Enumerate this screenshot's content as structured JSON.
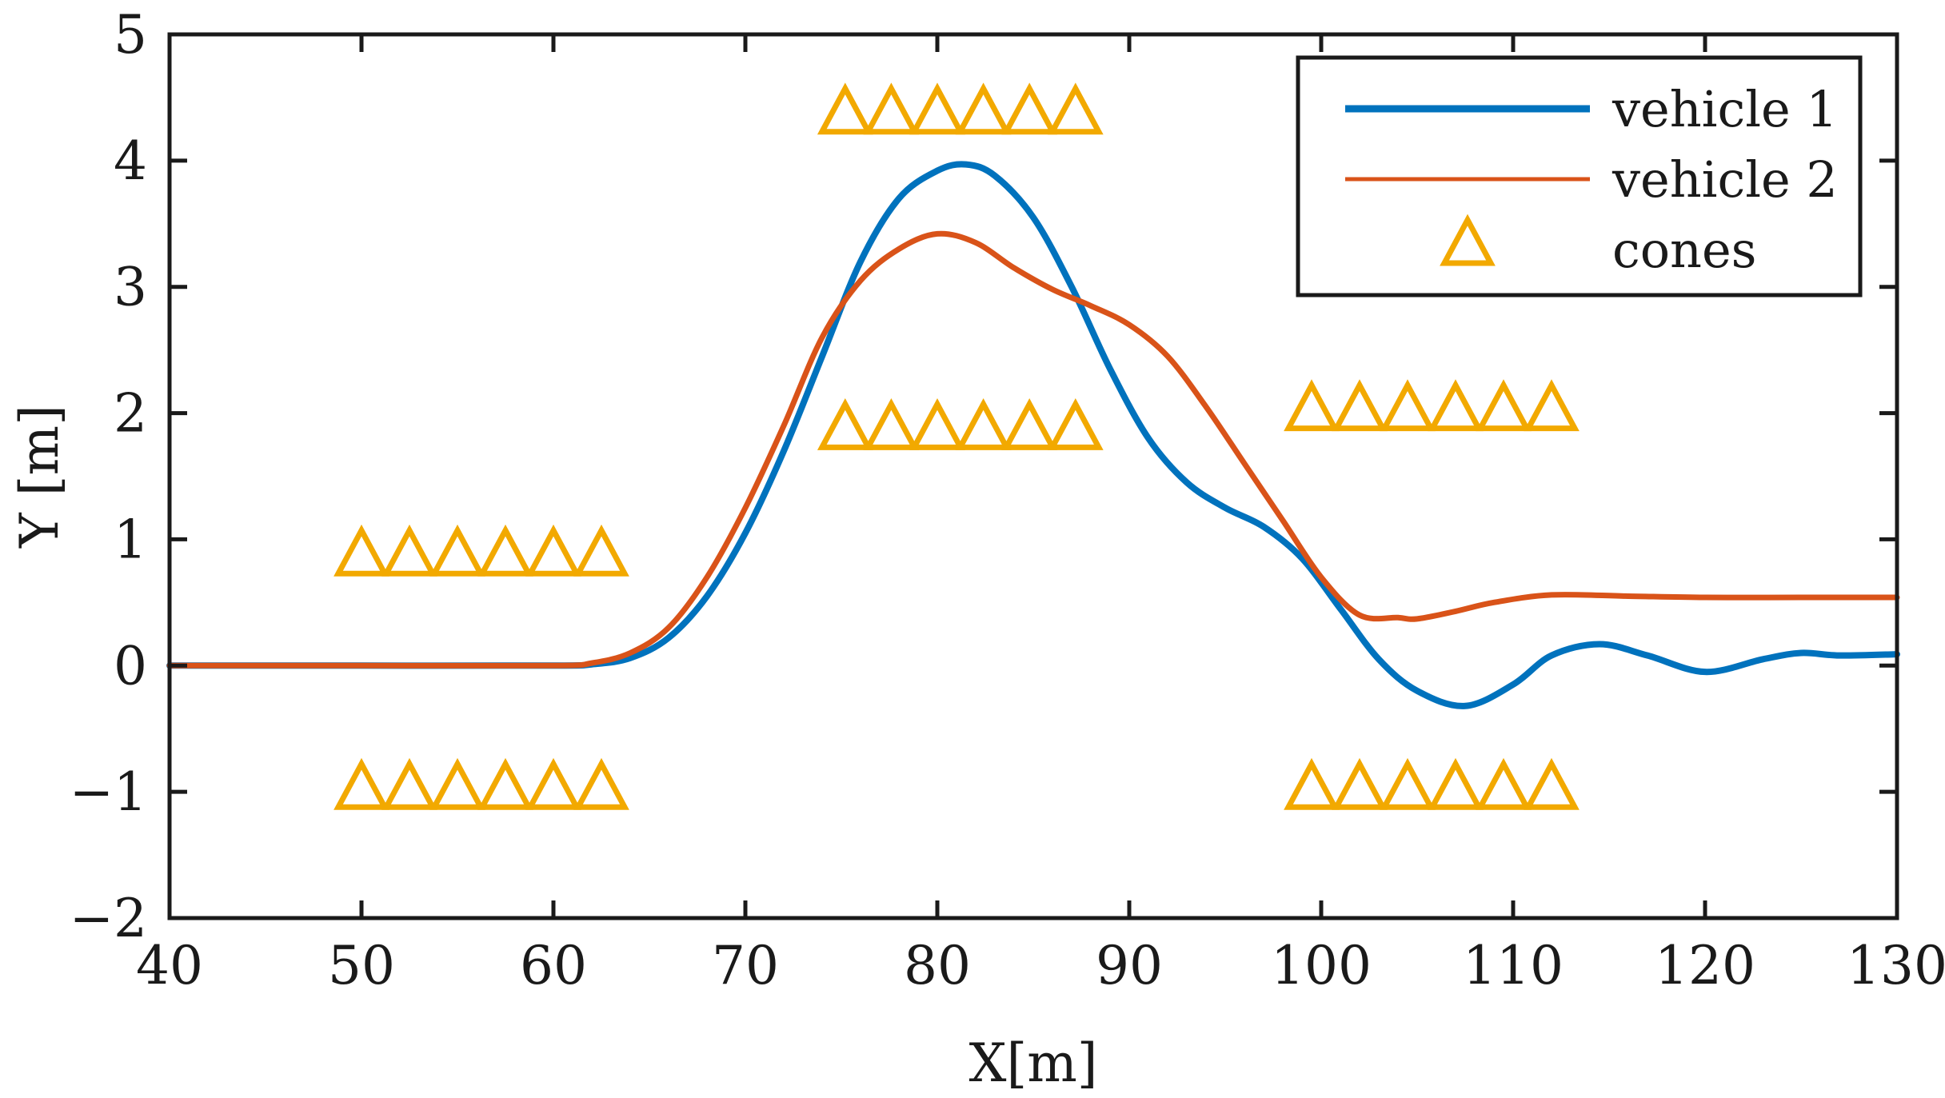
{
  "chart_data": {
    "type": "line",
    "title": "",
    "xlabel": "X[m]",
    "ylabel": "Y [m]",
    "xlim": [
      40,
      130
    ],
    "ylim": [
      -2,
      5
    ],
    "xticks": [
      40,
      50,
      60,
      70,
      80,
      90,
      100,
      110,
      120,
      130
    ],
    "yticks": [
      -2,
      -1,
      0,
      1,
      2,
      3,
      4,
      5
    ],
    "xtick_labels": [
      "40",
      "50",
      "60",
      "70",
      "80",
      "90",
      "100",
      "110",
      "120",
      "130"
    ],
    "ytick_labels": [
      "−2",
      "−1",
      "0",
      "1",
      "2",
      "3",
      "4",
      "5"
    ],
    "grid": false,
    "legend_position": "top-right",
    "series": [
      {
        "name": "vehicle 1",
        "color": "#0072BD",
        "style": "thick",
        "x": [
          40,
          50,
          60,
          62,
          64,
          66,
          68,
          70,
          72,
          74,
          76,
          78,
          80,
          81.5,
          83,
          85,
          87,
          89,
          91,
          93,
          95,
          97,
          99,
          101,
          103,
          105,
          107.5,
          110,
          112,
          114.5,
          117,
          120,
          123,
          125,
          127,
          130
        ],
        "y": [
          0,
          0,
          0,
          0.01,
          0.06,
          0.22,
          0.55,
          1.05,
          1.7,
          2.45,
          3.2,
          3.7,
          3.92,
          3.97,
          3.88,
          3.55,
          3.0,
          2.35,
          1.8,
          1.45,
          1.25,
          1.1,
          0.85,
          0.45,
          0.05,
          -0.2,
          -0.32,
          -0.15,
          0.08,
          0.17,
          0.08,
          -0.05,
          0.05,
          0.1,
          0.08,
          0.09
        ]
      },
      {
        "name": "vehicle 2",
        "color": "#D95319",
        "style": "medium",
        "x": [
          40,
          50,
          60,
          62,
          64,
          66,
          68,
          70,
          72,
          74,
          76,
          78,
          80,
          82,
          84,
          86,
          88,
          90,
          92,
          94,
          96,
          98,
          100,
          102,
          104,
          105,
          107,
          109,
          112,
          116,
          120,
          125,
          130
        ],
        "y": [
          0,
          0,
          0,
          0.02,
          0.1,
          0.3,
          0.7,
          1.25,
          1.9,
          2.6,
          3.05,
          3.3,
          3.42,
          3.35,
          3.15,
          2.98,
          2.85,
          2.7,
          2.45,
          2.05,
          1.6,
          1.15,
          0.7,
          0.4,
          0.38,
          0.37,
          0.43,
          0.5,
          0.56,
          0.55,
          0.54,
          0.54,
          0.54
        ]
      }
    ],
    "cones": {
      "name": "cones",
      "color": "#F2A900",
      "groups": [
        {
          "x": [
            50,
            52.5,
            55,
            57.5,
            60,
            62.5
          ],
          "y": 0.9
        },
        {
          "x": [
            50,
            52.5,
            55,
            57.5,
            60,
            62.5
          ],
          "y": -0.95
        },
        {
          "x": [
            75.2,
            77.6,
            80,
            82.4,
            84.8,
            87.2
          ],
          "y": 4.4
        },
        {
          "x": [
            75.2,
            77.6,
            80,
            82.4,
            84.8,
            87.2
          ],
          "y": 1.9
        },
        {
          "x": [
            99.5,
            102,
            104.5,
            107,
            109.5,
            112
          ],
          "y": 2.05
        },
        {
          "x": [
            99.5,
            102,
            104.5,
            107,
            109.5,
            112
          ],
          "y": -0.95
        }
      ]
    },
    "legend": {
      "items": [
        "vehicle 1",
        "vehicle 2",
        "cones"
      ]
    }
  }
}
